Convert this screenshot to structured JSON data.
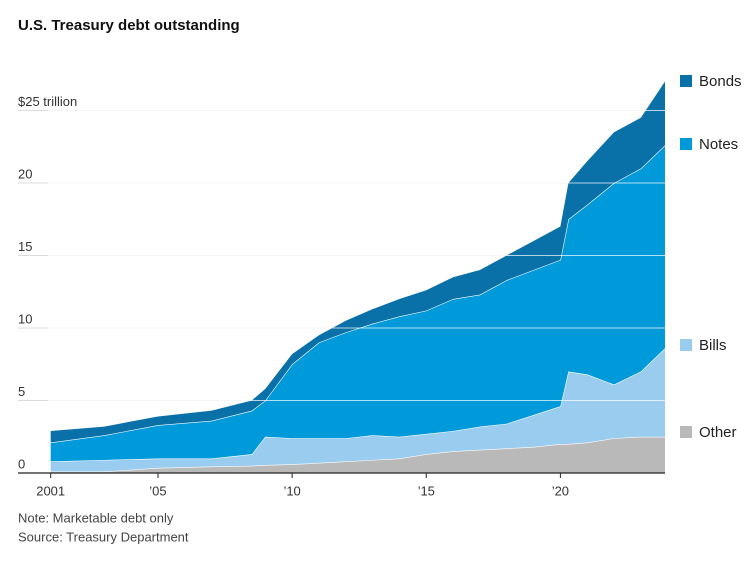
{
  "chart_data": {
    "type": "stacked-area",
    "title": "U.S. Treasury debt outstanding",
    "notes": [
      "Note: Marketable debt only",
      "Source: Treasury Department"
    ],
    "x": [
      2001,
      2003,
      2005,
      2007,
      2008.5,
      2009,
      2010,
      2011,
      2012,
      2013,
      2014,
      2015,
      2016,
      2017,
      2018,
      2019,
      2020,
      2020.3,
      2021,
      2022,
      2023,
      2023.9
    ],
    "series": [
      {
        "name": "Other",
        "color": "#b9b9b9",
        "values": [
          0.1,
          0.1,
          0.35,
          0.45,
          0.5,
          0.55,
          0.6,
          0.7,
          0.8,
          0.9,
          1.0,
          1.3,
          1.5,
          1.6,
          1.7,
          1.8,
          2.0,
          2.0,
          2.1,
          2.4,
          2.5,
          2.5
        ]
      },
      {
        "name": "Bills",
        "color": "#99ccee",
        "values": [
          0.7,
          0.8,
          0.65,
          0.55,
          0.8,
          1.95,
          1.8,
          1.7,
          1.6,
          1.7,
          1.5,
          1.4,
          1.4,
          1.6,
          1.7,
          2.2,
          2.6,
          5.0,
          4.7,
          3.7,
          4.5,
          6.1
        ]
      },
      {
        "name": "Notes",
        "color": "#0099d9",
        "values": [
          1.3,
          1.7,
          2.3,
          2.6,
          3.0,
          2.5,
          5.1,
          6.6,
          7.3,
          7.7,
          8.3,
          8.5,
          9.1,
          9.1,
          9.9,
          10.0,
          10.1,
          10.5,
          11.7,
          13.9,
          14.0,
          14.0
        ]
      },
      {
        "name": "Bonds",
        "color": "#0a70a8",
        "values": [
          0.8,
          0.6,
          0.6,
          0.7,
          0.7,
          0.8,
          0.7,
          0.5,
          0.8,
          1.0,
          1.2,
          1.4,
          1.5,
          1.7,
          1.7,
          2.0,
          2.3,
          2.5,
          3.0,
          3.5,
          3.5,
          4.4
        ]
      }
    ],
    "xlim": [
      2000.9,
      2023.9
    ],
    "xticks": [
      2001,
      {
        "value": 2005,
        "label": "’05"
      },
      {
        "value": 2010,
        "label": "’10"
      },
      {
        "value": 2015,
        "label": "’15"
      },
      {
        "value": 2020,
        "label": "’20"
      }
    ],
    "ylim": [
      0,
      27
    ],
    "yticks": [
      0,
      5,
      10,
      15,
      20,
      {
        "value": 25,
        "label": "$25 trillion"
      }
    ],
    "grid": true,
    "legend": "right"
  }
}
